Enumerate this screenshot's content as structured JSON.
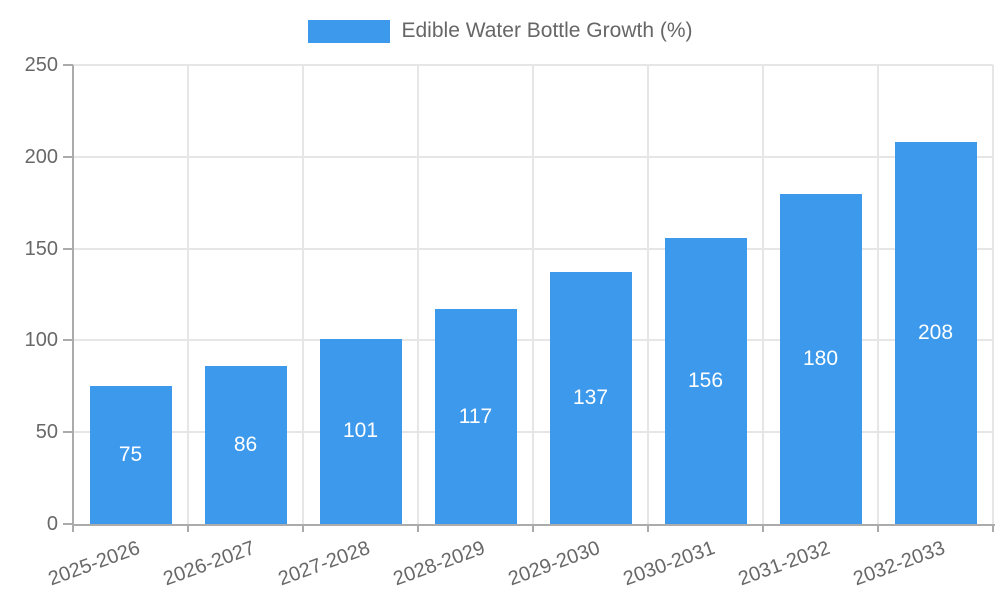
{
  "legend": {
    "label": "Edible Water Bottle Growth (%)"
  },
  "chart_data": {
    "type": "bar",
    "title": "Edible Water Bottle Growth (%)",
    "series_name": "Edible Water Bottle Growth (%)",
    "categories": [
      "2025-2026",
      "2026-2027",
      "2027-2028",
      "2028-2029",
      "2029-2030",
      "2030-2031",
      "2031-2032",
      "2032-2033"
    ],
    "values": [
      75,
      86,
      101,
      117,
      137,
      156,
      180,
      208
    ],
    "xlabel": "",
    "ylabel": "",
    "ylim": [
      0,
      250
    ],
    "yticks": [
      0,
      50,
      100,
      150,
      200,
      250
    ],
    "grid": true,
    "legend_position": "top-center",
    "value_labels": "inside-center",
    "x_tick_rotation_deg": -20,
    "colors": {
      "bar": "#3C99EC",
      "value_label": "#FFFFFF",
      "axis_text": "#686868",
      "legend_text": "#666666",
      "gridline": "#E6E6E6",
      "axis_line": "#ABABAB"
    }
  }
}
